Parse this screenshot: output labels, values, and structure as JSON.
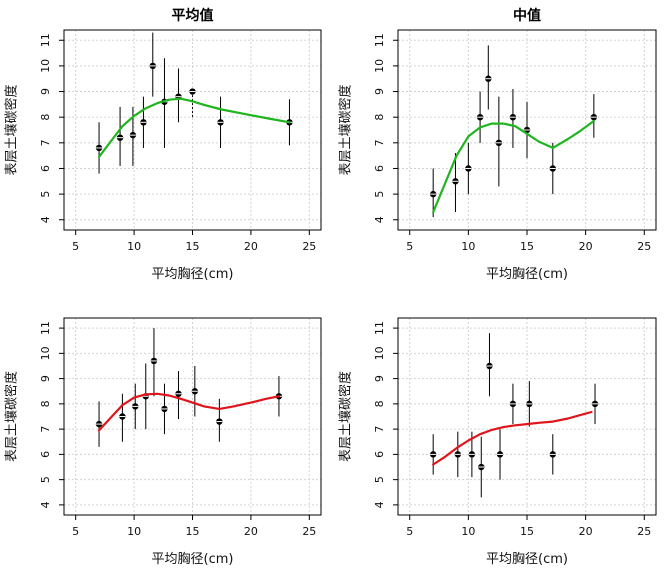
{
  "figure": {
    "background": "#ffffff"
  },
  "chart_data": [
    {
      "type": "scatter",
      "title": "平均值",
      "xlabel": "平均胸径(cm)",
      "ylabel": "表层土壤碳密度",
      "xlim": [
        4,
        26
      ],
      "ylim": [
        3.6,
        11.4
      ],
      "xticks": [
        5,
        10,
        15,
        20,
        25
      ],
      "yticks": [
        4,
        5,
        6,
        7,
        8,
        9,
        10,
        11
      ],
      "grid": true,
      "points": [
        {
          "x": 7.0,
          "y": 6.8,
          "lo": 5.8,
          "hi": 7.8
        },
        {
          "x": 8.8,
          "y": 7.2,
          "lo": 6.1,
          "hi": 8.4
        },
        {
          "x": 9.9,
          "y": 7.3,
          "lo": 6.1,
          "hi": 8.4
        },
        {
          "x": 10.8,
          "y": 7.8,
          "lo": 6.8,
          "hi": 8.8
        },
        {
          "x": 11.6,
          "y": 10.0,
          "lo": 8.8,
          "hi": 11.3
        },
        {
          "x": 12.6,
          "y": 8.6,
          "lo": 6.8,
          "hi": 10.3
        },
        {
          "x": 13.8,
          "y": 8.8,
          "lo": 7.8,
          "hi": 9.9
        },
        {
          "x": 15.0,
          "y": 9.0,
          "lo": 8.0,
          "hi": 9.1,
          "dotted": true
        },
        {
          "x": 17.4,
          "y": 7.8,
          "lo": 6.8,
          "hi": 8.8
        },
        {
          "x": 23.3,
          "y": 7.8,
          "lo": 6.9,
          "hi": 8.7
        }
      ],
      "series": [
        {
          "color": "#1fb51f",
          "x": [
            7.0,
            8.0,
            9.0,
            10.0,
            11.0,
            12.0,
            13.0,
            14.0,
            15.0,
            16.0,
            17.5,
            19.5,
            21.5,
            23.3
          ],
          "y": [
            6.45,
            7.05,
            7.65,
            8.05,
            8.35,
            8.55,
            8.68,
            8.72,
            8.62,
            8.48,
            8.3,
            8.12,
            7.95,
            7.8
          ]
        }
      ]
    },
    {
      "type": "scatter",
      "title": "中值",
      "xlabel": "平均胸径(cm)",
      "ylabel": "表层土壤碳密度",
      "xlim": [
        4,
        26
      ],
      "ylim": [
        3.6,
        11.4
      ],
      "xticks": [
        5,
        10,
        15,
        20,
        25
      ],
      "yticks": [
        4,
        5,
        6,
        7,
        8,
        9,
        10,
        11
      ],
      "grid": true,
      "points": [
        {
          "x": 7.0,
          "y": 5.0,
          "lo": 4.1,
          "hi": 6.0
        },
        {
          "x": 8.9,
          "y": 5.5,
          "lo": 4.3,
          "hi": 6.6
        },
        {
          "x": 10.0,
          "y": 6.0,
          "lo": 5.0,
          "hi": 7.0
        },
        {
          "x": 11.0,
          "y": 8.0,
          "lo": 7.0,
          "hi": 9.0
        },
        {
          "x": 11.7,
          "y": 9.5,
          "lo": 8.3,
          "hi": 10.8
        },
        {
          "x": 12.6,
          "y": 7.0,
          "lo": 5.3,
          "hi": 8.8
        },
        {
          "x": 13.8,
          "y": 8.0,
          "lo": 6.8,
          "hi": 9.1
        },
        {
          "x": 15.0,
          "y": 7.5,
          "lo": 6.4,
          "hi": 8.6
        },
        {
          "x": 17.2,
          "y": 6.0,
          "lo": 5.0,
          "hi": 7.0
        },
        {
          "x": 20.7,
          "y": 8.0,
          "lo": 7.2,
          "hi": 8.9
        }
      ],
      "series": [
        {
          "color": "#1fb51f",
          "x": [
            7.0,
            8.0,
            9.0,
            10.0,
            11.0,
            12.0,
            13.0,
            14.0,
            15.0,
            16.0,
            17.2,
            18.5,
            19.5,
            20.7
          ],
          "y": [
            4.3,
            5.4,
            6.5,
            7.25,
            7.6,
            7.75,
            7.75,
            7.65,
            7.35,
            7.05,
            6.8,
            7.15,
            7.45,
            7.85
          ]
        }
      ]
    },
    {
      "type": "scatter",
      "title": "",
      "xlabel": "平均胸径(cm)",
      "ylabel": "表层土壤碳密度",
      "xlim": [
        4,
        26
      ],
      "ylim": [
        3.6,
        11.4
      ],
      "xticks": [
        5,
        10,
        15,
        20,
        25
      ],
      "yticks": [
        4,
        5,
        6,
        7,
        8,
        9,
        10,
        11
      ],
      "grid": true,
      "points": [
        {
          "x": 7.0,
          "y": 7.2,
          "lo": 6.3,
          "hi": 8.1
        },
        {
          "x": 9.0,
          "y": 7.5,
          "lo": 6.5,
          "hi": 8.4
        },
        {
          "x": 10.1,
          "y": 7.9,
          "lo": 7.0,
          "hi": 8.8
        },
        {
          "x": 11.0,
          "y": 8.3,
          "lo": 7.0,
          "hi": 9.6
        },
        {
          "x": 11.7,
          "y": 9.7,
          "lo": 8.3,
          "hi": 11.0
        },
        {
          "x": 12.6,
          "y": 7.8,
          "lo": 6.8,
          "hi": 8.8
        },
        {
          "x": 13.8,
          "y": 8.4,
          "lo": 7.4,
          "hi": 9.3
        },
        {
          "x": 15.2,
          "y": 8.5,
          "lo": 7.5,
          "hi": 9.5
        },
        {
          "x": 17.3,
          "y": 7.3,
          "lo": 6.5,
          "hi": 8.2
        },
        {
          "x": 22.4,
          "y": 8.3,
          "lo": 7.5,
          "hi": 9.1
        }
      ],
      "series": [
        {
          "color": "#e0141a",
          "x": [
            7.0,
            8.0,
            9.0,
            10.0,
            11.0,
            12.0,
            13.0,
            14.0,
            15.0,
            16.0,
            17.3,
            18.5,
            20.0,
            21.3,
            22.4
          ],
          "y": [
            6.95,
            7.45,
            7.95,
            8.25,
            8.38,
            8.4,
            8.33,
            8.2,
            8.05,
            7.9,
            7.8,
            7.9,
            8.05,
            8.2,
            8.3
          ]
        }
      ]
    },
    {
      "type": "scatter",
      "title": "",
      "xlabel": "平均胸径(cm)",
      "ylabel": "表层土壤碳密度",
      "xlim": [
        4,
        26
      ],
      "ylim": [
        3.6,
        11.4
      ],
      "xticks": [
        5,
        10,
        15,
        20,
        25
      ],
      "yticks": [
        4,
        5,
        6,
        7,
        8,
        9,
        10,
        11
      ],
      "grid": true,
      "points": [
        {
          "x": 7.0,
          "y": 6.0,
          "lo": 5.2,
          "hi": 6.8
        },
        {
          "x": 9.1,
          "y": 6.0,
          "lo": 5.1,
          "hi": 6.9
        },
        {
          "x": 10.3,
          "y": 6.0,
          "lo": 5.1,
          "hi": 6.9
        },
        {
          "x": 11.1,
          "y": 5.5,
          "lo": 4.3,
          "hi": 6.7
        },
        {
          "x": 11.8,
          "y": 9.5,
          "lo": 8.3,
          "hi": 10.8
        },
        {
          "x": 12.7,
          "y": 6.0,
          "lo": 5.0,
          "hi": 7.0
        },
        {
          "x": 13.8,
          "y": 8.0,
          "lo": 7.2,
          "hi": 8.8
        },
        {
          "x": 15.2,
          "y": 8.0,
          "lo": 7.1,
          "hi": 8.9
        },
        {
          "x": 17.2,
          "y": 6.0,
          "lo": 5.2,
          "hi": 6.8
        },
        {
          "x": 20.8,
          "y": 8.0,
          "lo": 7.2,
          "hi": 8.8
        }
      ],
      "series": [
        {
          "color": "#e0141a",
          "x": [
            7.0,
            8.0,
            9.0,
            10.0,
            11.0,
            12.0,
            13.0,
            14.0,
            15.0,
            16.0,
            17.2,
            18.5,
            19.5,
            20.5
          ],
          "y": [
            5.6,
            5.9,
            6.25,
            6.55,
            6.8,
            6.97,
            7.08,
            7.15,
            7.2,
            7.25,
            7.3,
            7.42,
            7.55,
            7.68
          ]
        }
      ]
    }
  ]
}
